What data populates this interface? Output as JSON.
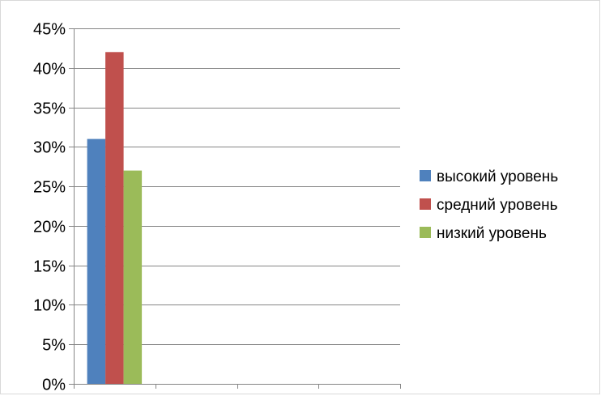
{
  "chart_data": {
    "type": "bar",
    "categories": [
      ""
    ],
    "series": [
      {
        "name": "высокий уровень",
        "values": [
          0.31
        ],
        "color": "#4f81bd"
      },
      {
        "name": "средний уровень",
        "values": [
          0.42
        ],
        "color": "#c0504d"
      },
      {
        "name": "низкий уровень",
        "values": [
          0.27
        ],
        "color": "#9bbb59"
      }
    ],
    "y_ticks": [
      "0%",
      "5%",
      "10%",
      "15%",
      "20%",
      "25%",
      "30%",
      "35%",
      "40%",
      "45%"
    ],
    "ylim": [
      0,
      0.45
    ],
    "x_slots": 4,
    "grid": true,
    "legend_position": "right"
  }
}
